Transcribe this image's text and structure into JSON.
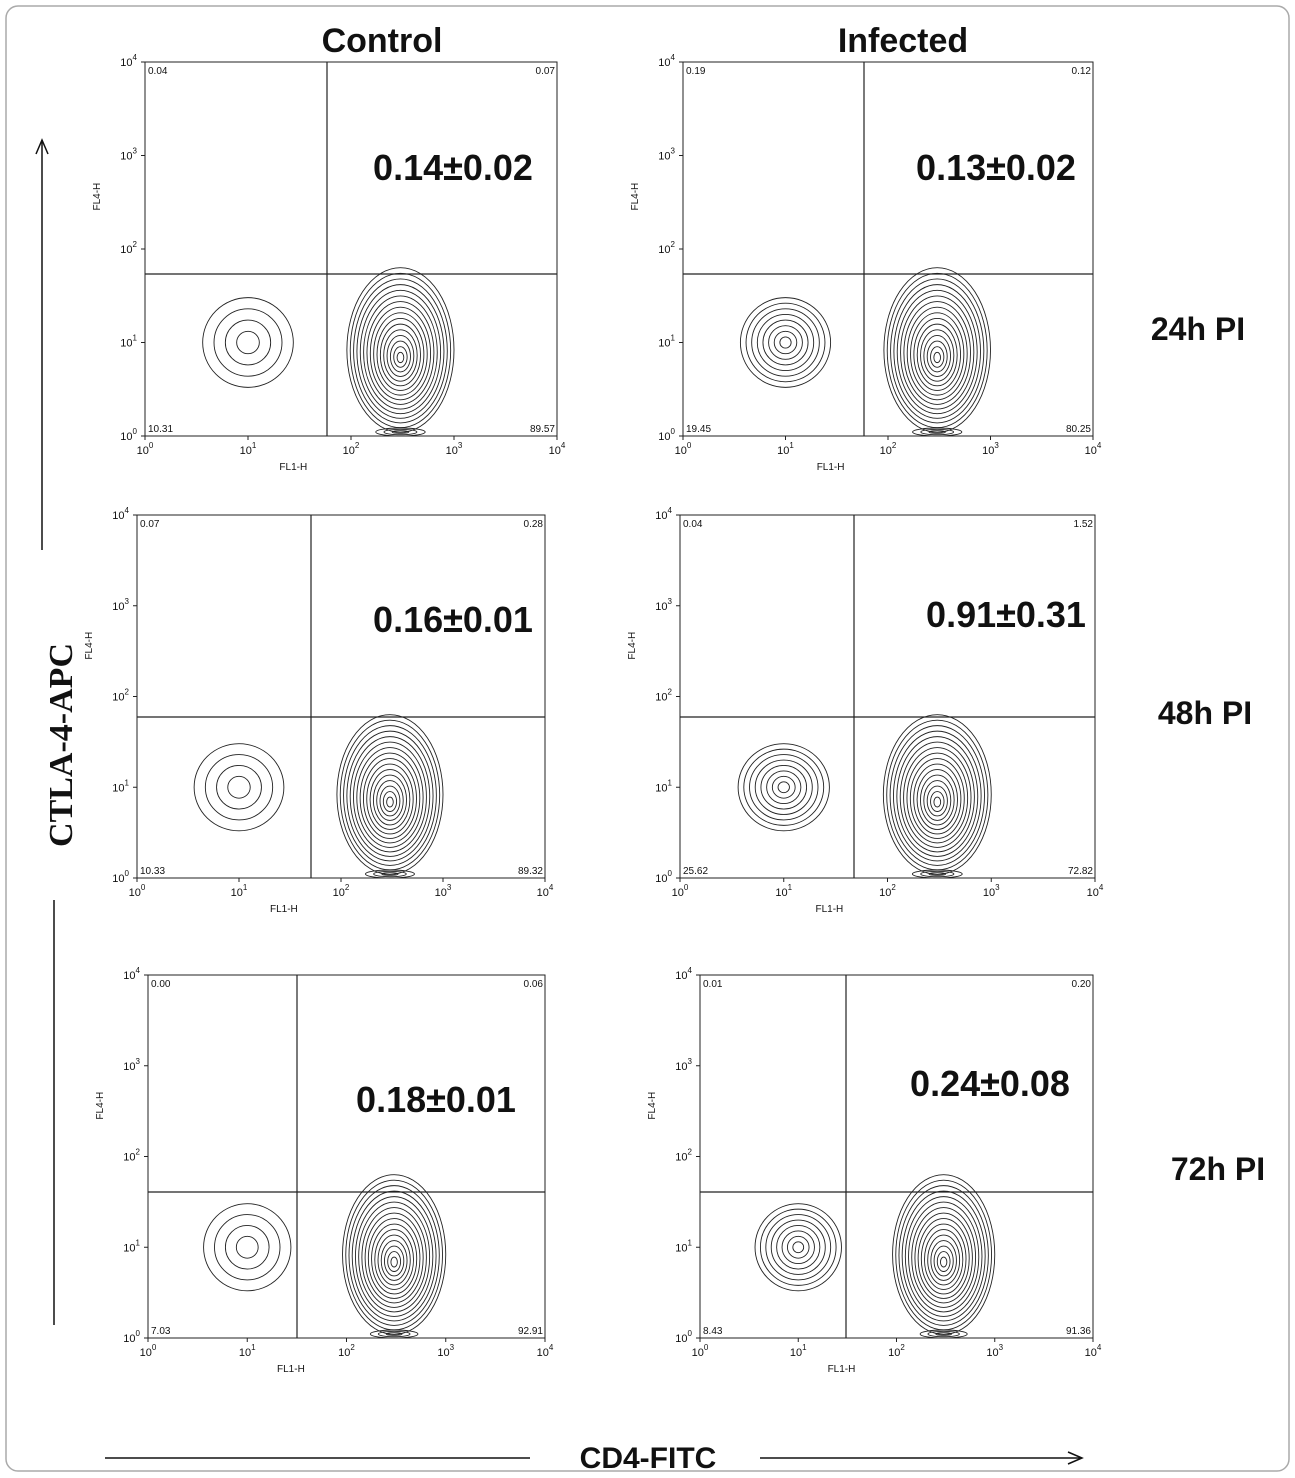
{
  "column_headers": [
    "Control",
    "Infected"
  ],
  "row_labels": [
    "24h PI",
    "48h PI",
    "72h PI"
  ],
  "y_axis_label": "CTLA-4-APC",
  "x_axis_label": "CD4-FITC",
  "tick_base": "10",
  "tick_exponents": [
    "0",
    "1",
    "2",
    "3",
    "4"
  ],
  "panels": [
    {
      "annotation": "0.14±0.02",
      "x_axis_title": "FL1-H",
      "y_axis_title": "FL4-H",
      "quadrants": {
        "upper_left": "0.04",
        "upper_right": "0.07",
        "lower_left": "10.31",
        "lower_right": "89.57"
      }
    },
    {
      "annotation": "0.13±0.02",
      "x_axis_title": "FL1-H",
      "y_axis_title": "FL4-H",
      "quadrants": {
        "upper_left": "0.19",
        "upper_right": "0.12",
        "lower_left": "19.45",
        "lower_right": "80.25"
      }
    },
    {
      "annotation": "0.16±0.01",
      "x_axis_title": "FL1-H",
      "y_axis_title": "FL4-H",
      "quadrants": {
        "upper_left": "0.07",
        "upper_right": "0.28",
        "lower_left": "10.33",
        "lower_right": "89.32"
      }
    },
    {
      "annotation": "0.91±0.31",
      "x_axis_title": "FL1-H",
      "y_axis_title": "FL4-H",
      "quadrants": {
        "upper_left": "0.04",
        "upper_right": "1.52",
        "lower_left": "25.62",
        "lower_right": "72.82"
      }
    },
    {
      "annotation": "0.18±0.01",
      "x_axis_title": "FL1-H",
      "y_axis_title": "FL4-H",
      "quadrants": {
        "upper_left": "0.00",
        "upper_right": "0.06",
        "lower_left": "7.03",
        "lower_right": "92.91"
      }
    },
    {
      "annotation": "0.24±0.08",
      "x_axis_title": "FL1-H",
      "y_axis_title": "FL4-H",
      "quadrants": {
        "upper_left": "0.01",
        "upper_right": "0.20",
        "lower_left": "8.43",
        "lower_right": "91.36"
      }
    }
  ]
}
